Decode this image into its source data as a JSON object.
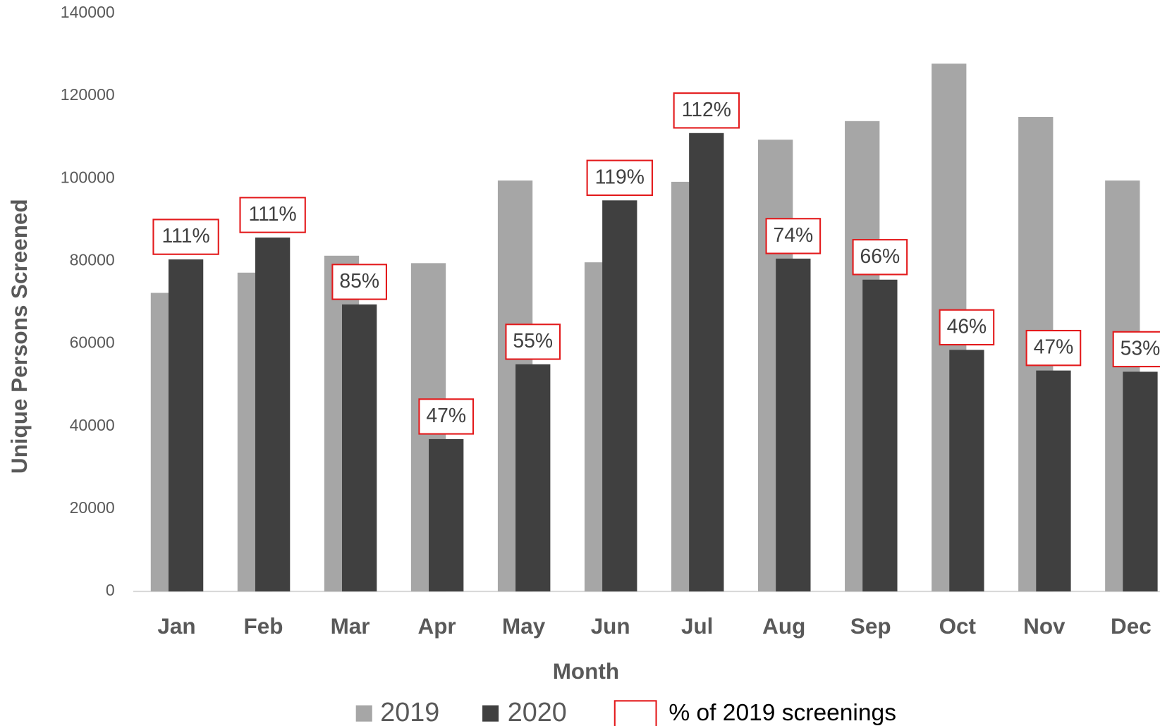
{
  "chart_data": {
    "type": "bar",
    "x_label": "Month",
    "y_label": "Unique Persons Screened",
    "categories": [
      "Jan",
      "Feb",
      "Mar",
      "Apr",
      "May",
      "Jun",
      "Jul",
      "Aug",
      "Sep",
      "Oct",
      "Nov",
      "Dec"
    ],
    "series": [
      {
        "name": "2019",
        "color": "#a6a6a6",
        "values": [
          72300,
          77200,
          81300,
          79500,
          99500,
          79700,
          99200,
          109400,
          113900,
          127800,
          114900,
          99500
        ]
      },
      {
        "name": "2020",
        "color": "#404040",
        "values": [
          80400,
          85700,
          69500,
          36900,
          55000,
          94700,
          111000,
          80600,
          75500,
          58500,
          53500,
          53200
        ]
      },
      {
        "name": "% of 2019 screenings",
        "color": "#e31a1c",
        "values": [
          111,
          111,
          85,
          47,
          55,
          119,
          112,
          74,
          66,
          46,
          47,
          53
        ],
        "value_labels": [
          "111%",
          "111%",
          "85%",
          "47%",
          "55%",
          "119%",
          "112%",
          "74%",
          "66%",
          "46%",
          "47%",
          "53%"
        ]
      }
    ],
    "ylim": [
      0,
      140000
    ],
    "yticks": [
      0,
      20000,
      40000,
      60000,
      80000,
      100000,
      120000,
      140000
    ],
    "grid": false
  }
}
